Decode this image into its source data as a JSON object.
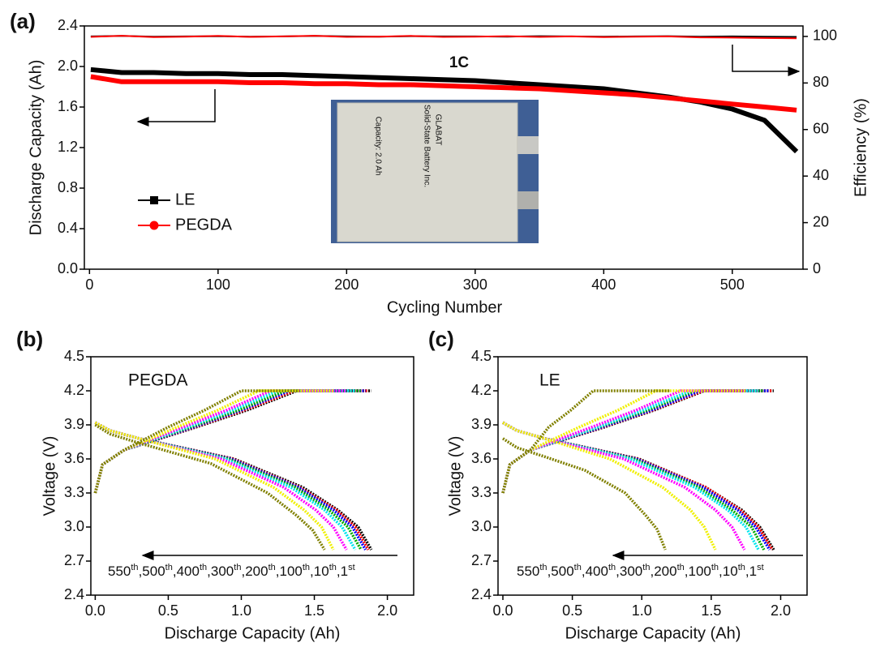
{
  "chart_data": [
    {
      "type": "line",
      "panel_label": "(a)",
      "xlabel": "Cycling Number",
      "ylabel": "Discharge Capacity (Ah)",
      "y2label": "Efficiency (%)",
      "annotation": "1C",
      "inset_texts": [
        "GLABAT",
        "Solid-State Battery Inc.",
        "Capacity: 2.0 Ah"
      ],
      "xlim": [
        -4,
        555
      ],
      "xticks": [
        0,
        100,
        200,
        300,
        400,
        500
      ],
      "ylim": [
        0,
        2.4
      ],
      "yticks": [
        {
          "value": 0,
          "label": "0.0"
        },
        0.4,
        0.8,
        1.2,
        1.6,
        {
          "value": 2,
          "label": "2.0"
        },
        2.4
      ],
      "y2lim": [
        0,
        104.5
      ],
      "y2ticks": [
        0,
        20,
        40,
        60,
        80,
        100
      ],
      "x": [
        1,
        25,
        50,
        75,
        100,
        125,
        150,
        175,
        200,
        225,
        250,
        275,
        300,
        325,
        350,
        375,
        400,
        425,
        450,
        475,
        500,
        525,
        550
      ],
      "series": [
        {
          "name": "LE",
          "color": "#000000",
          "marker": "square",
          "values": [
            1.97,
            1.94,
            1.94,
            1.93,
            1.93,
            1.92,
            1.92,
            1.91,
            1.9,
            1.89,
            1.88,
            1.87,
            1.86,
            1.84,
            1.82,
            1.8,
            1.78,
            1.74,
            1.7,
            1.65,
            1.58,
            1.47,
            1.16
          ]
        },
        {
          "name": "PEGDA",
          "color": "#ff0000",
          "marker": "circle",
          "values": [
            1.9,
            1.85,
            1.85,
            1.85,
            1.85,
            1.84,
            1.84,
            1.83,
            1.83,
            1.82,
            1.82,
            1.81,
            1.8,
            1.79,
            1.78,
            1.76,
            1.74,
            1.72,
            1.69,
            1.66,
            1.63,
            1.6,
            1.57
          ]
        },
        {
          "color": "#000000",
          "axis": "y2",
          "values": [
            100,
            100.2,
            99.9,
            100,
            100.1,
            99.9,
            100,
            100.2,
            100,
            99.9,
            100.1,
            100,
            100,
            99.9,
            100.1,
            100,
            99.9,
            100,
            100.1,
            99.9,
            100,
            99.9,
            99.8
          ]
        },
        {
          "color": "#ff0000",
          "axis": "y2",
          "values": [
            99.8,
            100.3,
            99.7,
            99.9,
            100.2,
            99.8,
            100,
            100.3,
            99.8,
            99.9,
            100.2,
            99.8,
            99.9,
            100.1,
            99.8,
            100,
            99.7,
            99.9,
            100,
            99.6,
            99.5,
            99.3,
            99.2
          ]
        }
      ]
    },
    {
      "type": "line",
      "panel_label": "(b)",
      "xlabel": "Discharge Capacity (Ah)",
      "ylabel": "Voltage (V)",
      "annotation": "PEGDA",
      "xlim": [
        -0.03,
        2.18
      ],
      "xticks": [
        {
          "value": 0,
          "label": "0.0"
        },
        0.5,
        {
          "value": 1,
          "label": "1.0"
        },
        1.5,
        {
          "value": 2,
          "label": "2.0"
        }
      ],
      "ylim": [
        2.4,
        4.5
      ],
      "yticks": [
        2.4,
        2.7,
        {
          "value": 3,
          "label": "3.0"
        },
        3.3,
        3.6,
        3.9,
        4.2,
        4.5
      ],
      "cycle_labels": [
        {
          "number": "550",
          "suffix": "th"
        },
        {
          "number": "500",
          "suffix": "th"
        },
        {
          "number": "400",
          "suffix": "th"
        },
        {
          "number": "300",
          "suffix": "th"
        },
        {
          "number": "200",
          "suffix": "th"
        },
        {
          "number": "100",
          "suffix": "th"
        },
        {
          "number": "10",
          "suffix": "th"
        },
        {
          "number": "1",
          "suffix": "st"
        }
      ],
      "separator": ",",
      "series": [
        {
          "color": "#000000",
          "x": [
            0,
            0.05,
            0.2,
            0.69,
            1.04,
            1.38,
            1.89,
            null,
            0,
            0.1,
            0.3,
            0.95,
            1.42,
            1.66,
            1.8,
            1.89
          ],
          "values": [
            3.3,
            3.55,
            3.68,
            3.88,
            4.03,
            4.2,
            4.2,
            null,
            3.92,
            3.85,
            3.78,
            3.6,
            3.35,
            3.15,
            3.0,
            2.8
          ]
        },
        {
          "color": "#ff0000",
          "x": [
            0,
            0.05,
            0.2,
            0.68,
            1.02,
            1.36,
            1.87,
            null,
            0,
            0.1,
            0.3,
            0.94,
            1.4,
            1.65,
            1.78,
            1.87
          ],
          "values": [
            3.3,
            3.55,
            3.68,
            3.88,
            4.03,
            4.2,
            4.2,
            null,
            3.92,
            3.85,
            3.78,
            3.6,
            3.35,
            3.15,
            3.0,
            2.8
          ]
        },
        {
          "color": "#0000ff",
          "x": [
            0,
            0.05,
            0.2,
            0.67,
            1.0,
            1.33,
            1.85,
            null,
            0,
            0.1,
            0.3,
            0.93,
            1.39,
            1.63,
            1.76,
            1.85
          ],
          "values": [
            3.3,
            3.55,
            3.68,
            3.88,
            4.03,
            4.2,
            4.2,
            null,
            3.92,
            3.85,
            3.78,
            3.6,
            3.35,
            3.15,
            3.0,
            2.8
          ]
        },
        {
          "color": "#00aa00",
          "x": [
            0,
            0.05,
            0.2,
            0.65,
            0.98,
            1.3,
            1.82,
            null,
            0,
            0.1,
            0.3,
            0.91,
            1.37,
            1.6,
            1.73,
            1.82
          ],
          "values": [
            3.3,
            3.55,
            3.68,
            3.88,
            4.03,
            4.2,
            4.2,
            null,
            3.92,
            3.85,
            3.78,
            3.6,
            3.35,
            3.15,
            3.0,
            2.8
          ]
        },
        {
          "color": "#00e5ee",
          "x": [
            0,
            0.05,
            0.2,
            0.63,
            0.94,
            1.25,
            1.78,
            null,
            0,
            0.1,
            0.3,
            0.89,
            1.34,
            1.57,
            1.69,
            1.78
          ],
          "values": [
            3.3,
            3.55,
            3.68,
            3.88,
            4.03,
            4.2,
            4.2,
            null,
            3.92,
            3.85,
            3.78,
            3.6,
            3.35,
            3.15,
            3.0,
            2.8
          ]
        },
        {
          "color": "#ff00ff",
          "x": [
            0,
            0.05,
            0.2,
            0.6,
            0.9,
            1.2,
            1.72,
            null,
            0,
            0.1,
            0.3,
            0.86,
            1.29,
            1.51,
            1.63,
            1.72
          ],
          "values": [
            3.3,
            3.55,
            3.68,
            3.88,
            4.03,
            4.2,
            4.2,
            null,
            3.92,
            3.85,
            3.78,
            3.6,
            3.35,
            3.15,
            3.0,
            2.8
          ]
        },
        {
          "color": "#f0f000",
          "x": [
            0,
            0.05,
            0.2,
            0.56,
            0.84,
            1.12,
            1.63,
            null,
            0,
            0.1,
            0.3,
            0.82,
            1.22,
            1.43,
            1.55,
            1.63
          ],
          "values": [
            3.3,
            3.55,
            3.68,
            3.88,
            4.03,
            4.2,
            4.2,
            null,
            3.92,
            3.85,
            3.78,
            3.6,
            3.35,
            3.15,
            3.0,
            2.8
          ]
        },
        {
          "color": "#808000",
          "x": [
            0,
            0.05,
            0.2,
            0.5,
            0.75,
            1.0,
            1.4,
            null,
            0,
            0.1,
            0.3,
            0.79,
            1.18,
            1.38,
            1.49,
            1.57
          ],
          "values": [
            3.3,
            3.55,
            3.68,
            3.88,
            4.03,
            4.2,
            4.2,
            null,
            3.9,
            3.82,
            3.74,
            3.56,
            3.3,
            3.1,
            2.97,
            2.8
          ]
        }
      ]
    },
    {
      "type": "line",
      "panel_label": "(c)",
      "xlabel": "Discharge Capacity (Ah)",
      "ylabel": "Voltage (V)",
      "annotation": "LE",
      "xlim": [
        -0.035,
        2.19
      ],
      "xticks": [
        {
          "value": 0,
          "label": "0.0"
        },
        0.5,
        {
          "value": 1,
          "label": "1.0"
        },
        1.5,
        {
          "value": 2,
          "label": "2.0"
        }
      ],
      "ylim": [
        2.4,
        4.5
      ],
      "yticks": [
        2.4,
        2.7,
        {
          "value": 3,
          "label": "3.0"
        },
        3.3,
        3.6,
        3.9,
        4.2,
        4.5
      ],
      "cycle_labels": [
        {
          "number": "550",
          "suffix": "th"
        },
        {
          "number": "500",
          "suffix": "th"
        },
        {
          "number": "400",
          "suffix": "th"
        },
        {
          "number": "300",
          "suffix": "th"
        },
        {
          "number": "200",
          "suffix": "th"
        },
        {
          "number": "100",
          "suffix": "th"
        },
        {
          "number": "10",
          "suffix": "th"
        },
        {
          "number": "1",
          "suffix": "st"
        }
      ],
      "separator": ",",
      "series": [
        {
          "color": "#000000",
          "x": [
            0,
            0.05,
            0.2,
            0.73,
            1.09,
            1.45,
            1.95,
            null,
            0,
            0.1,
            0.3,
            0.98,
            1.46,
            1.72,
            1.85,
            1.95
          ],
          "values": [
            3.3,
            3.55,
            3.68,
            3.88,
            4.03,
            4.2,
            4.2,
            null,
            3.92,
            3.85,
            3.78,
            3.6,
            3.35,
            3.15,
            3.0,
            2.8
          ]
        },
        {
          "color": "#ff0000",
          "x": [
            0,
            0.05,
            0.2,
            0.72,
            1.08,
            1.44,
            1.94,
            null,
            0,
            0.1,
            0.3,
            0.97,
            1.46,
            1.71,
            1.84,
            1.94
          ],
          "values": [
            3.3,
            3.55,
            3.68,
            3.88,
            4.03,
            4.2,
            4.2,
            null,
            3.92,
            3.85,
            3.78,
            3.6,
            3.35,
            3.15,
            3.0,
            2.8
          ]
        },
        {
          "color": "#0000ff",
          "x": [
            0,
            0.05,
            0.2,
            0.71,
            1.07,
            1.42,
            1.92,
            null,
            0,
            0.1,
            0.3,
            0.96,
            1.44,
            1.69,
            1.82,
            1.92
          ],
          "values": [
            3.3,
            3.55,
            3.68,
            3.88,
            4.03,
            4.2,
            4.2,
            null,
            3.92,
            3.85,
            3.78,
            3.6,
            3.35,
            3.15,
            3.0,
            2.8
          ]
        },
        {
          "color": "#00aa00",
          "x": [
            0,
            0.05,
            0.2,
            0.69,
            1.04,
            1.38,
            1.88,
            null,
            0,
            0.1,
            0.3,
            0.94,
            1.41,
            1.65,
            1.79,
            1.88
          ],
          "values": [
            3.3,
            3.55,
            3.68,
            3.88,
            4.03,
            4.2,
            4.2,
            null,
            3.92,
            3.85,
            3.78,
            3.6,
            3.35,
            3.15,
            3.0,
            2.8
          ]
        },
        {
          "color": "#00e5ee",
          "x": [
            0,
            0.05,
            0.2,
            0.68,
            1.01,
            1.35,
            1.84,
            null,
            0,
            0.1,
            0.3,
            0.92,
            1.38,
            1.62,
            1.75,
            1.84
          ],
          "values": [
            3.3,
            3.55,
            3.68,
            3.88,
            4.03,
            4.2,
            4.2,
            null,
            3.92,
            3.85,
            3.78,
            3.6,
            3.35,
            3.15,
            3.0,
            2.8
          ]
        },
        {
          "color": "#ff00ff",
          "x": [
            0,
            0.05,
            0.2,
            0.64,
            0.96,
            1.28,
            1.74,
            null,
            0,
            0.1,
            0.3,
            0.87,
            1.31,
            1.53,
            1.65,
            1.74
          ],
          "values": [
            3.3,
            3.55,
            3.68,
            3.88,
            4.03,
            4.2,
            4.2,
            null,
            3.92,
            3.85,
            3.78,
            3.6,
            3.35,
            3.15,
            3.0,
            2.8
          ]
        },
        {
          "color": "#f0f000",
          "x": [
            0,
            0.05,
            0.2,
            0.55,
            0.83,
            1.1,
            1.75,
            null,
            0,
            0.1,
            0.3,
            0.77,
            1.15,
            1.35,
            1.45,
            1.53
          ],
          "values": [
            3.3,
            3.55,
            3.68,
            3.88,
            4.03,
            4.2,
            4.2,
            null,
            3.92,
            3.85,
            3.78,
            3.6,
            3.35,
            3.15,
            3.0,
            2.8
          ]
        },
        {
          "color": "#808000",
          "x": [
            0,
            0.05,
            0.2,
            0.33,
            0.49,
            0.65,
            1.2,
            null,
            0,
            0.1,
            0.3,
            0.59,
            0.88,
            1.03,
            1.11,
            1.17
          ],
          "values": [
            3.3,
            3.55,
            3.68,
            3.88,
            4.03,
            4.2,
            4.2,
            null,
            3.78,
            3.7,
            3.62,
            3.5,
            3.3,
            3.1,
            2.98,
            2.8
          ]
        }
      ]
    }
  ]
}
